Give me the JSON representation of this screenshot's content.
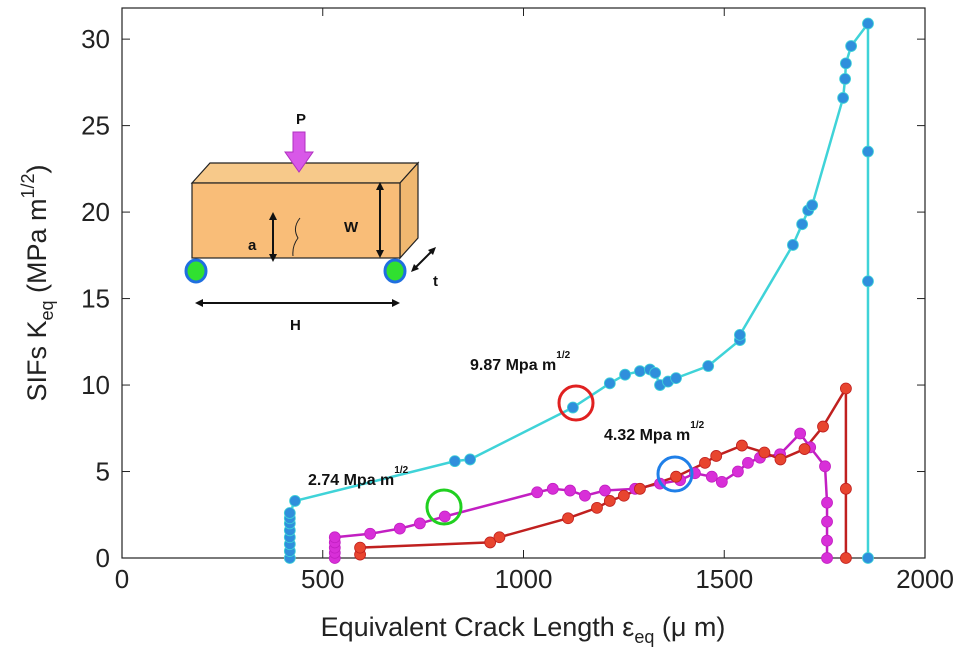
{
  "chart_data": {
    "type": "line",
    "xlabel_parts": [
      "Equivalent Crack Length ε",
      "eq",
      " (μ m)"
    ],
    "ylabel_parts": [
      "SIFs K",
      "eq",
      " (MPa m",
      "1/2",
      ")"
    ],
    "xlim": [
      0,
      2000
    ],
    "xticks": [
      0,
      500,
      1000,
      1500,
      2000
    ],
    "ylim": [
      0,
      31.8
    ],
    "yticks": [
      0,
      5,
      10,
      15,
      20,
      25,
      30
    ],
    "annotations": [
      {
        "parts": [
          "9.87 Mpa m",
          "1/2"
        ]
      },
      {
        "parts": [
          "4.32 Mpa m",
          "1/2"
        ]
      },
      {
        "parts": [
          "2.74 Mpa m",
          "1/2"
        ]
      }
    ],
    "inset_labels": [
      "P",
      "W",
      "a",
      "t",
      "H"
    ],
    "series": [
      {
        "color": "#3fd3d8",
        "marker_color": "#2f8fdc",
        "x": [
          418,
          418,
          418,
          418,
          418,
          418,
          418,
          418,
          431,
          829,
          867,
          1123,
          1215,
          1253,
          1290,
          1315,
          1328,
          1340,
          1360,
          1380,
          1460,
          1539,
          1539,
          1671,
          1694,
          1709,
          1719,
          1796,
          1801,
          1803,
          1816,
          1858,
          1858,
          1858,
          1858
        ],
        "values": [
          0,
          0.4,
          0.8,
          1.2,
          1.6,
          2.0,
          2.3,
          2.6,
          3.3,
          5.6,
          5.7,
          8.7,
          10.1,
          10.6,
          10.8,
          10.9,
          10.7,
          10.0,
          10.2,
          10.4,
          11.1,
          12.6,
          12.9,
          18.1,
          19.3,
          20.1,
          20.4,
          26.6,
          27.7,
          28.6,
          29.6,
          30.9,
          23.5,
          16.0,
          0
        ]
      },
      {
        "color": "#c21fc2",
        "marker_color": "#d82fd8",
        "x": [
          530,
          530,
          530,
          530,
          530,
          618,
          692,
          742,
          804,
          1034,
          1073,
          1116,
          1153,
          1203,
          1278,
          1340,
          1390,
          1427,
          1469,
          1494,
          1534,
          1559,
          1589,
          1639,
          1689,
          1714,
          1751,
          1756,
          1756,
          1756,
          1756
        ],
        "values": [
          0,
          0.3,
          0.6,
          0.9,
          1.2,
          1.4,
          1.7,
          2.0,
          2.4,
          3.8,
          4.0,
          3.9,
          3.6,
          3.9,
          4.0,
          4.3,
          4.5,
          4.9,
          4.7,
          4.4,
          5.0,
          5.5,
          5.8,
          6.0,
          7.2,
          6.4,
          5.3,
          3.2,
          2.1,
          1.0,
          0
        ]
      },
      {
        "color": "#c0201f",
        "marker_color": "#e8452f",
        "x": [
          593,
          593,
          917,
          940,
          1111,
          1183,
          1215,
          1250,
          1290,
          1380,
          1452,
          1480,
          1544,
          1600,
          1640,
          1700,
          1746,
          1803,
          1803,
          1803
        ],
        "values": [
          0.2,
          0.6,
          0.9,
          1.2,
          2.3,
          2.9,
          3.3,
          3.6,
          4.0,
          4.7,
          5.5,
          5.9,
          6.5,
          6.1,
          5.7,
          6.3,
          7.6,
          9.8,
          4.0,
          0
        ]
      }
    ]
  }
}
